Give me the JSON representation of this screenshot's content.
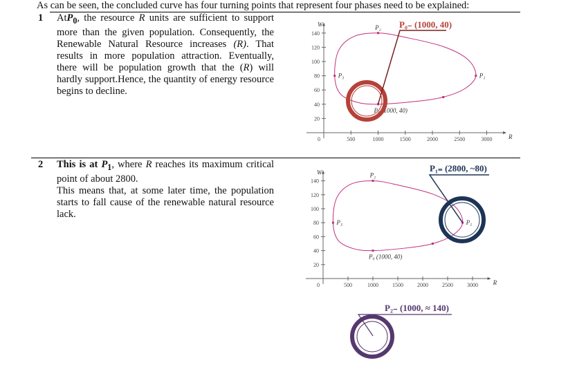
{
  "intro": "As can be seen, the concluded curve has four turning points that represent four phases need to be explained:",
  "rows": [
    {
      "number": "1",
      "text_html": "At<b><i>P</i><sub>0</sub></b>, the resource <i>R</i> units are sufficient to support more than the given population. Consequently, the Renewable Natural Resource increases <i>(R)</i>. That results in more population attraction. Eventually, there will be population growth that the (<i>R</i>) will hardly support.Hence, the quantity of energy resource begins to decline.",
      "annotation": "P₀₋ (1000, 40)"
    },
    {
      "number": "2",
      "text_html": "<b>This is at <i>P</i><sub>1</sub></b>, where <i>R</i> reaches its maximum critical point of about 2800.<br>This means that, at some later time, the population starts to fall cause of the renewable natural resource lack.",
      "annotation": "P₁₌ (2800, ~80)"
    }
  ],
  "p2_annotation": "P₂₋ (1000, ≈ 140)",
  "colors": {
    "curve": "#c0307f",
    "red": "#b5423a",
    "navy": "#1d3456",
    "purple": "#55386e"
  },
  "chart_data": [
    {
      "type": "line",
      "xlabel": "R",
      "ylabel": "W",
      "xticks": [
        500,
        1000,
        1500,
        2000,
        2500,
        3000
      ],
      "yticks": [
        20,
        40,
        60,
        80,
        100,
        120,
        140
      ],
      "origin_label": "0",
      "xlim": [
        0,
        3300
      ],
      "ylim": [
        0,
        150
      ],
      "points": [
        {
          "name": "P0",
          "label": "P₀ (1000, 40)",
          "x": 1000,
          "y": 40
        },
        {
          "name": "P1",
          "label": "P₁",
          "x": 2800,
          "y": 80
        },
        {
          "name": "P2",
          "label": "P₂",
          "x": 1000,
          "y": 140
        },
        {
          "name": "P3",
          "label": "P₃",
          "x": 200,
          "y": 80
        },
        {
          "name": "",
          "label": "",
          "x": 2200,
          "y": 50
        }
      ],
      "curve": [
        [
          1000,
          40
        ],
        [
          1700,
          44
        ],
        [
          2200,
          50
        ],
        [
          2600,
          62
        ],
        [
          2800,
          80
        ],
        [
          2650,
          103
        ],
        [
          2200,
          121
        ],
        [
          1500,
          134
        ],
        [
          1000,
          140
        ],
        [
          550,
          135
        ],
        [
          270,
          115
        ],
        [
          200,
          80
        ],
        [
          300,
          55
        ],
        [
          600,
          43
        ]
      ]
    }
  ]
}
